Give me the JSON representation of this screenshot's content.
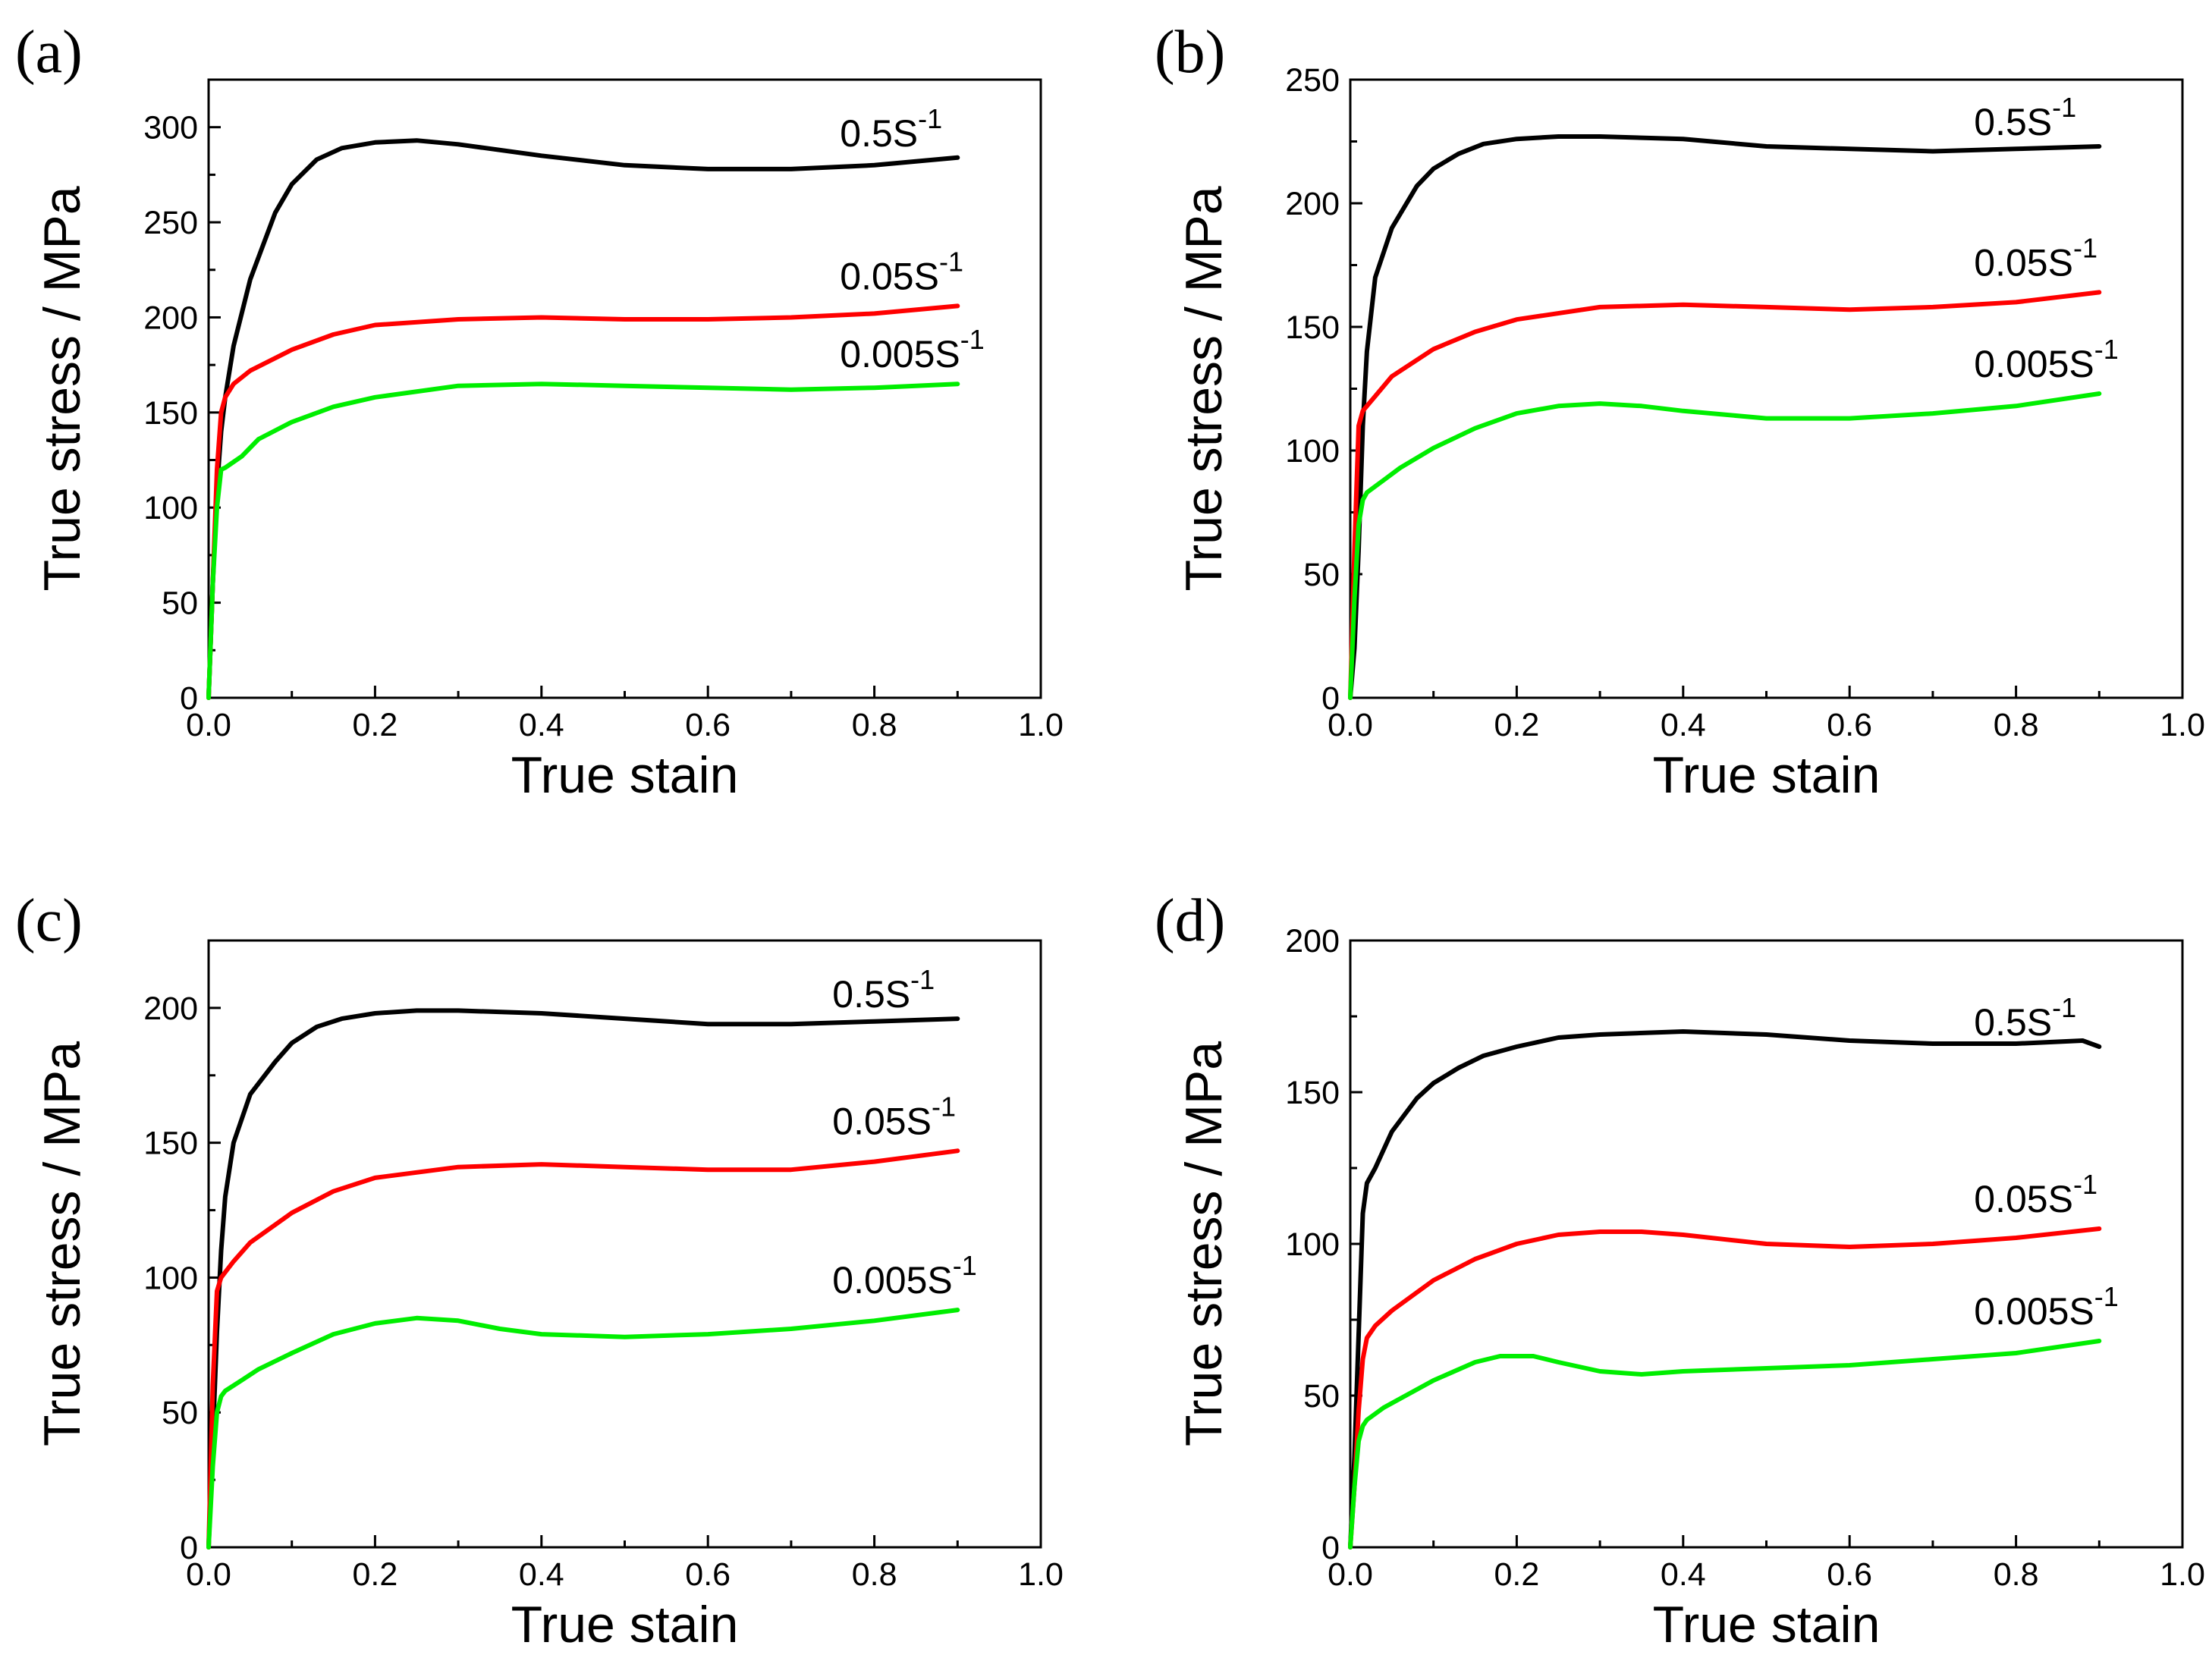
{
  "chart_data": [
    {
      "type": "line",
      "panel_label": "(a)",
      "xlabel": "True stain",
      "ylabel": "True stress / MPa",
      "xlim": [
        0,
        1.0
      ],
      "ylim": [
        0,
        325
      ],
      "xticks": [
        "0.0",
        "0.2",
        "0.4",
        "0.6",
        "0.8",
        "1.0"
      ],
      "yticks": [
        "0",
        "50",
        "100",
        "150",
        "200",
        "250",
        "300"
      ],
      "series": [
        {
          "name": "0.5S-1",
          "label_base": "0.5S",
          "label_exp": "-1",
          "color": "#000000",
          "x": [
            0,
            0.005,
            0.01,
            0.015,
            0.02,
            0.03,
            0.05,
            0.08,
            0.1,
            0.13,
            0.16,
            0.2,
            0.25,
            0.3,
            0.4,
            0.5,
            0.6,
            0.7,
            0.8,
            0.9
          ],
          "y": [
            0,
            60,
            110,
            140,
            158,
            185,
            220,
            255,
            270,
            283,
            289,
            292,
            293,
            291,
            285,
            280,
            278,
            278,
            280,
            284
          ]
        },
        {
          "name": "0.05S-1",
          "label_base": "0.05S",
          "label_exp": "-1",
          "color": "#ff0000",
          "x": [
            0,
            0.005,
            0.01,
            0.015,
            0.02,
            0.03,
            0.05,
            0.1,
            0.15,
            0.2,
            0.3,
            0.4,
            0.5,
            0.6,
            0.7,
            0.8,
            0.9
          ],
          "y": [
            0,
            60,
            120,
            150,
            158,
            165,
            172,
            183,
            191,
            196,
            199,
            200,
            199,
            199,
            200,
            202,
            206
          ]
        },
        {
          "name": "0.005S-1",
          "label_base": "0.005S",
          "label_exp": "-1",
          "color": "#00ee00",
          "x": [
            0,
            0.005,
            0.01,
            0.015,
            0.02,
            0.04,
            0.06,
            0.1,
            0.15,
            0.2,
            0.3,
            0.4,
            0.5,
            0.6,
            0.7,
            0.8,
            0.9
          ],
          "y": [
            0,
            60,
            100,
            120,
            121,
            127,
            136,
            145,
            153,
            158,
            164,
            165,
            164,
            163,
            162,
            163,
            165
          ]
        }
      ]
    },
    {
      "type": "line",
      "panel_label": "(b)",
      "xlabel": "True stain",
      "ylabel": "True stress / MPa",
      "xlim": [
        0,
        1.0
      ],
      "ylim": [
        0,
        250
      ],
      "xticks": [
        "0.0",
        "0.2",
        "0.4",
        "0.6",
        "0.8",
        "1.0"
      ],
      "yticks": [
        "0",
        "50",
        "100",
        "150",
        "200",
        "250"
      ],
      "series": [
        {
          "name": "0.5S-1",
          "label_base": "0.5S",
          "label_exp": "-1",
          "color": "#000000",
          "x": [
            0,
            0.005,
            0.01,
            0.015,
            0.02,
            0.03,
            0.05,
            0.08,
            0.1,
            0.13,
            0.16,
            0.2,
            0.25,
            0.3,
            0.4,
            0.5,
            0.6,
            0.7,
            0.8,
            0.9
          ],
          "y": [
            0,
            20,
            60,
            110,
            140,
            170,
            190,
            207,
            214,
            220,
            224,
            226,
            227,
            227,
            226,
            223,
            222,
            221,
            222,
            223
          ]
        },
        {
          "name": "0.05S-1",
          "label_base": "0.05S",
          "label_exp": "-1",
          "color": "#ff0000",
          "x": [
            0,
            0.005,
            0.01,
            0.015,
            0.02,
            0.03,
            0.05,
            0.1,
            0.15,
            0.2,
            0.3,
            0.4,
            0.5,
            0.6,
            0.7,
            0.8,
            0.9
          ],
          "y": [
            0,
            60,
            110,
            116,
            118,
            122,
            130,
            141,
            148,
            153,
            158,
            159,
            158,
            157,
            158,
            160,
            164
          ]
        },
        {
          "name": "0.005S-1",
          "label_base": "0.005S",
          "label_exp": "-1",
          "color": "#00ee00",
          "x": [
            0,
            0.005,
            0.01,
            0.015,
            0.02,
            0.04,
            0.06,
            0.1,
            0.15,
            0.2,
            0.25,
            0.3,
            0.35,
            0.4,
            0.5,
            0.6,
            0.7,
            0.8,
            0.9
          ],
          "y": [
            0,
            40,
            70,
            80,
            83,
            88,
            93,
            101,
            109,
            115,
            118,
            119,
            118,
            116,
            113,
            113,
            115,
            118,
            123
          ]
        }
      ]
    },
    {
      "type": "line",
      "panel_label": "(c)",
      "xlabel": "True stain",
      "ylabel": "True stress / MPa",
      "xlim": [
        0,
        1.0
      ],
      "ylim": [
        0,
        225
      ],
      "xticks": [
        "0.0",
        "0.2",
        "0.4",
        "0.6",
        "0.8",
        "1.0"
      ],
      "yticks": [
        "0",
        "50",
        "100",
        "150",
        "200"
      ],
      "series": [
        {
          "name": "0.5S-1",
          "label_base": "0.5S",
          "label_exp": "-1",
          "color": "#000000",
          "x": [
            0,
            0.005,
            0.01,
            0.015,
            0.02,
            0.03,
            0.05,
            0.08,
            0.1,
            0.13,
            0.16,
            0.2,
            0.25,
            0.3,
            0.4,
            0.5,
            0.6,
            0.7,
            0.8,
            0.9
          ],
          "y": [
            0,
            40,
            80,
            110,
            130,
            150,
            168,
            180,
            187,
            193,
            196,
            198,
            199,
            199,
            198,
            196,
            194,
            194,
            195,
            196
          ]
        },
        {
          "name": "0.05S-1",
          "label_base": "0.05S",
          "label_exp": "-1",
          "color": "#ff0000",
          "x": [
            0,
            0.005,
            0.01,
            0.015,
            0.02,
            0.03,
            0.05,
            0.1,
            0.15,
            0.2,
            0.3,
            0.4,
            0.5,
            0.6,
            0.7,
            0.8,
            0.9
          ],
          "y": [
            0,
            60,
            95,
            100,
            102,
            106,
            113,
            124,
            132,
            137,
            141,
            142,
            141,
            140,
            140,
            143,
            147
          ]
        },
        {
          "name": "0.005S-1",
          "label_base": "0.005S",
          "label_exp": "-1",
          "color": "#00ee00",
          "x": [
            0,
            0.005,
            0.01,
            0.015,
            0.02,
            0.04,
            0.06,
            0.1,
            0.15,
            0.2,
            0.25,
            0.3,
            0.35,
            0.4,
            0.5,
            0.6,
            0.7,
            0.8,
            0.9
          ],
          "y": [
            0,
            30,
            50,
            56,
            58,
            62,
            66,
            72,
            79,
            83,
            85,
            84,
            81,
            79,
            78,
            79,
            81,
            84,
            88
          ]
        }
      ]
    },
    {
      "type": "line",
      "panel_label": "(d)",
      "xlabel": "True stain",
      "ylabel": "True stress / MPa",
      "xlim": [
        0,
        1.0
      ],
      "ylim": [
        0,
        200
      ],
      "xticks": [
        "0.0",
        "0.2",
        "0.4",
        "0.6",
        "0.8",
        "1.0"
      ],
      "yticks": [
        "0",
        "50",
        "100",
        "150",
        "200"
      ],
      "series": [
        {
          "name": "0.5S-1",
          "label_base": "0.5S",
          "label_exp": "-1",
          "color": "#000000",
          "x": [
            0,
            0.005,
            0.01,
            0.015,
            0.02,
            0.03,
            0.05,
            0.08,
            0.1,
            0.13,
            0.16,
            0.2,
            0.25,
            0.3,
            0.4,
            0.5,
            0.6,
            0.7,
            0.8,
            0.88,
            0.9
          ],
          "y": [
            0,
            30,
            70,
            110,
            120,
            125,
            137,
            148,
            153,
            158,
            162,
            165,
            168,
            169,
            170,
            169,
            167,
            166,
            166,
            167,
            165
          ]
        },
        {
          "name": "0.05S-1",
          "label_base": "0.05S",
          "label_exp": "-1",
          "color": "#ff0000",
          "x": [
            0,
            0.005,
            0.01,
            0.015,
            0.02,
            0.03,
            0.05,
            0.1,
            0.15,
            0.2,
            0.25,
            0.3,
            0.35,
            0.4,
            0.5,
            0.6,
            0.7,
            0.8,
            0.9
          ],
          "y": [
            0,
            20,
            45,
            62,
            69,
            73,
            78,
            88,
            95,
            100,
            103,
            104,
            104,
            103,
            100,
            99,
            100,
            102,
            105
          ]
        },
        {
          "name": "0.005S-1",
          "label_base": "0.005S",
          "label_exp": "-1",
          "color": "#00ee00",
          "x": [
            0,
            0.005,
            0.01,
            0.015,
            0.02,
            0.04,
            0.06,
            0.1,
            0.15,
            0.18,
            0.2,
            0.22,
            0.25,
            0.3,
            0.35,
            0.4,
            0.5,
            0.6,
            0.7,
            0.8,
            0.9
          ],
          "y": [
            0,
            20,
            35,
            40,
            42,
            46,
            49,
            55,
            61,
            63,
            63,
            63,
            61,
            58,
            57,
            58,
            59,
            60,
            62,
            64,
            68
          ]
        }
      ]
    }
  ]
}
